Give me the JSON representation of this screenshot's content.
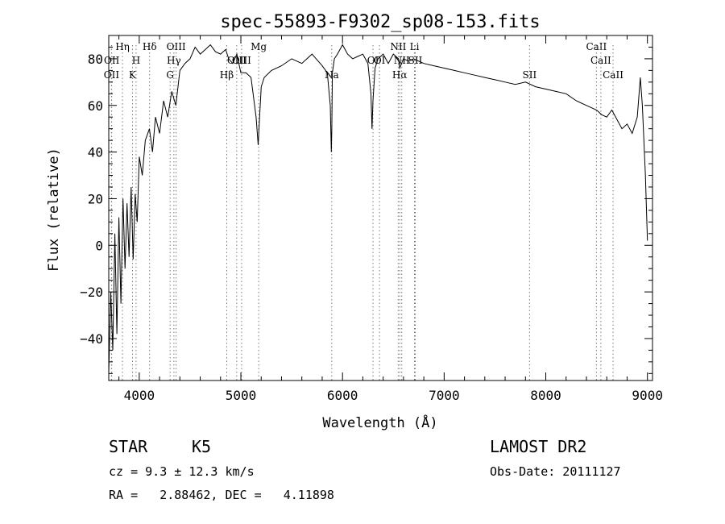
{
  "chart_data": {
    "type": "line",
    "title": "spec-55893-F9302_sp08-153.fits",
    "xlabel": "Wavelength (Å)",
    "ylabel": "Flux (relative)",
    "xlim": [
      3700,
      9050
    ],
    "ylim": [
      -58,
      90
    ],
    "x_ticks": [
      4000,
      5000,
      6000,
      7000,
      8000,
      9000
    ],
    "y_ticks": [
      -40,
      -20,
      0,
      20,
      40,
      60,
      80
    ],
    "grid": false,
    "legend": "none",
    "line_color": "#000000",
    "series": [
      {
        "x": [
          3700,
          3720,
          3740,
          3760,
          3780,
          3800,
          3820,
          3840,
          3860,
          3880,
          3900,
          3920,
          3940,
          3960,
          3980,
          4000,
          4030,
          4060,
          4100,
          4130,
          4160,
          4200,
          4240,
          4280,
          4320,
          4360,
          4400,
          4450,
          4500,
          4550,
          4600,
          4650,
          4700,
          4750,
          4800,
          4850,
          4880,
          4920,
          4960,
          5000,
          5050,
          5100,
          5150,
          5170,
          5185,
          5200,
          5230,
          5300,
          5400,
          5500,
          5600,
          5700,
          5800,
          5850,
          5880,
          5890,
          5895,
          5900,
          5920,
          5950,
          6000,
          6050,
          6100,
          6150,
          6200,
          6250,
          6280,
          6290,
          6300,
          6320,
          6350,
          6400,
          6450,
          6500,
          6550,
          6563,
          6600,
          6650,
          6700,
          6750,
          6800,
          6900,
          7000,
          7100,
          7200,
          7300,
          7400,
          7500,
          7600,
          7700,
          7800,
          7900,
          8000,
          8100,
          8200,
          8300,
          8400,
          8500,
          8550,
          8600,
          8650,
          8700,
          8750,
          8800,
          8850,
          8900,
          8930,
          8950,
          8980,
          9000
        ],
        "y": [
          -55,
          -20,
          -45,
          5,
          -38,
          12,
          -25,
          20,
          -10,
          18,
          -5,
          25,
          -6,
          22,
          10,
          38,
          30,
          45,
          50,
          40,
          55,
          48,
          62,
          55,
          66,
          60,
          75,
          78,
          80,
          85,
          82,
          84,
          86,
          83,
          82,
          84,
          80,
          78,
          82,
          74,
          74,
          72,
          55,
          43,
          56,
          68,
          72,
          75,
          77,
          80,
          78,
          82,
          77,
          74,
          60,
          40,
          50,
          74,
          80,
          82,
          86,
          82,
          80,
          81,
          82,
          78,
          65,
          50,
          62,
          76,
          80,
          82,
          78,
          82,
          80,
          76,
          80,
          79,
          80,
          79,
          78,
          77,
          76,
          75,
          74,
          73,
          72,
          71,
          70,
          69,
          70,
          68,
          67,
          66,
          65,
          62,
          60,
          58,
          56,
          55,
          58,
          54,
          50,
          52,
          48,
          55,
          72,
          60,
          30,
          2
        ]
      }
    ],
    "line_markers": [
      {
        "label": "OII",
        "wavelength": 3727,
        "row": 3
      },
      {
        "label": "OII",
        "wavelength": 3729,
        "row": 2
      },
      {
        "label": "Hη",
        "wavelength": 3835,
        "row": 1
      },
      {
        "label": "K",
        "wavelength": 3934,
        "row": 3
      },
      {
        "label": "H",
        "wavelength": 3969,
        "row": 2
      },
      {
        "label": "Hδ",
        "wavelength": 4102,
        "row": 1
      },
      {
        "label": "G",
        "wavelength": 4304,
        "row": 3
      },
      {
        "label": "Hγ",
        "wavelength": 4341,
        "row": 2
      },
      {
        "label": "OIII",
        "wavelength": 4363,
        "row": 1
      },
      {
        "label": "Hβ",
        "wavelength": 4861,
        "row": 3
      },
      {
        "label": "OIII",
        "wavelength": 4959,
        "row": 2
      },
      {
        "label": "OIII",
        "wavelength": 5007,
        "row": 2
      },
      {
        "label": "Mg",
        "wavelength": 5175,
        "row": 1
      },
      {
        "label": "Na",
        "wavelength": 5894,
        "row": 3
      },
      {
        "label": "OI",
        "wavelength": 6300,
        "row": 2
      },
      {
        "label": "OI",
        "wavelength": 6364,
        "row": 2
      },
      {
        "label": "NII",
        "wavelength": 6548,
        "row": 1
      },
      {
        "label": "Hα",
        "wavelength": 6563,
        "row": 3
      },
      {
        "label": "NII",
        "wavelength": 6583,
        "row": 2
      },
      {
        "label": "Li",
        "wavelength": 6708,
        "row": 1
      },
      {
        "label": "SII",
        "wavelength": 6716,
        "row": 2
      },
      {
        "label": "SII",
        "wavelength": 7840,
        "row": 3
      },
      {
        "label": "CaII",
        "wavelength": 8498,
        "row": 1
      },
      {
        "label": "CaII",
        "wavelength": 8542,
        "row": 2
      },
      {
        "label": "CaII",
        "wavelength": 8662,
        "row": 3
      }
    ]
  },
  "info": {
    "object_class": "STAR",
    "subclass": "K5",
    "survey": "LAMOST DR2",
    "redshift_line": "cz = 9.3 ± 12.3 km/s",
    "obs_date": "Obs-Date: 20111127",
    "coords_line": "RA =   2.88462, DEC =   4.11898"
  }
}
